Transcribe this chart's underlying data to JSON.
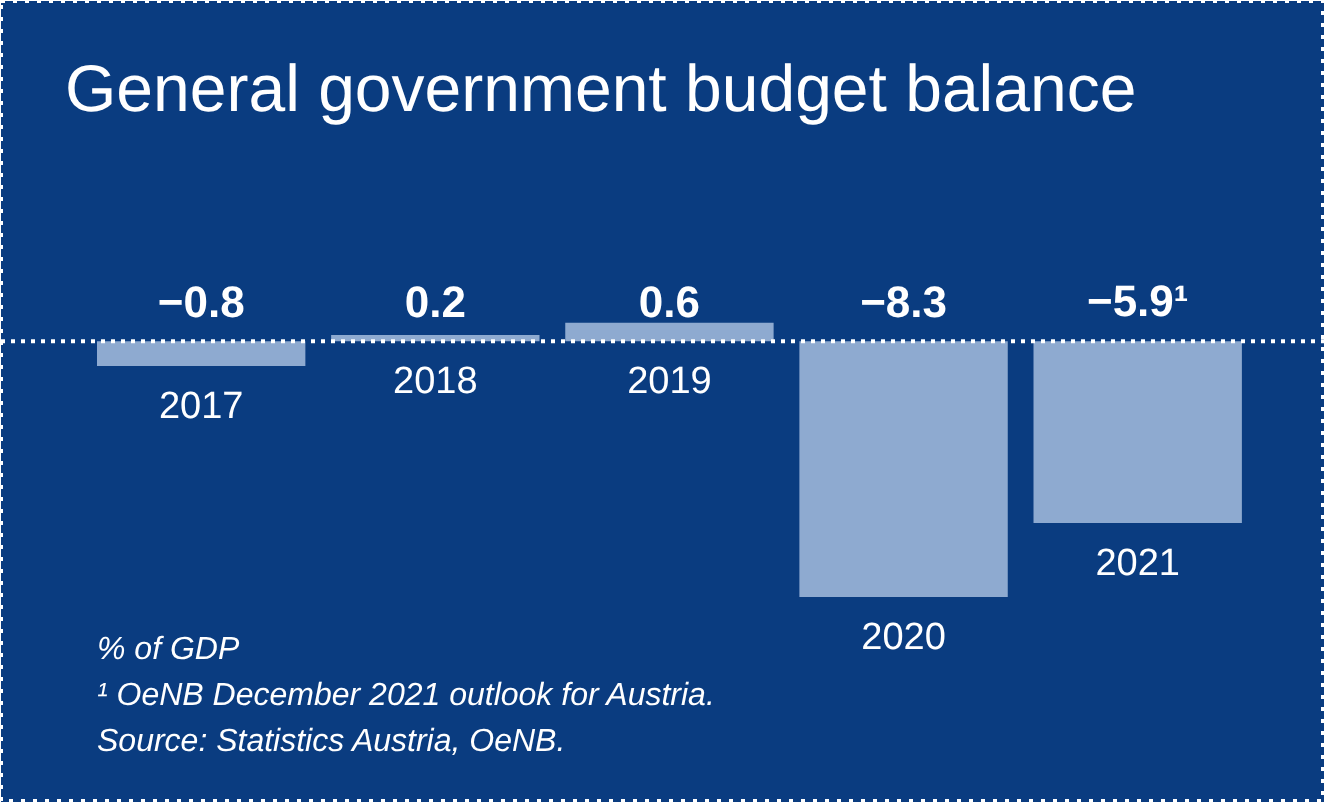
{
  "chart_data": {
    "type": "bar",
    "title": "General government budget balance",
    "categories": [
      "2017",
      "2018",
      "2019",
      "2020",
      "2021"
    ],
    "values": [
      -0.8,
      0.2,
      0.6,
      -8.3,
      -5.9
    ],
    "value_labels": [
      "−0.8",
      "0.2",
      "0.6",
      "−8.3",
      "−5.9¹"
    ],
    "color": "#8eaad0",
    "grid": false,
    "ref_lines": [
      {
        "axis": "y",
        "value": 0,
        "color": "#ffffff",
        "line_style": "dotted"
      }
    ],
    "annotations": [
      "% of GDP",
      "¹ OeNB December 2021 outlook for Austria.",
      "Source: Statistics Austria, OeNB."
    ]
  }
}
